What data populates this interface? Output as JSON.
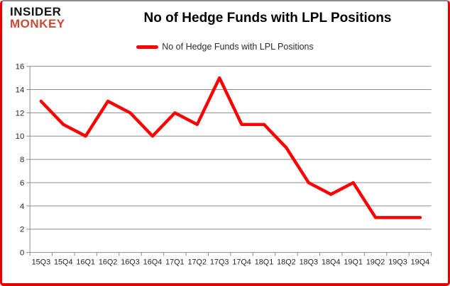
{
  "logo": {
    "line1": "INSIDER",
    "line2": "MONKEY"
  },
  "header": {
    "title": "No of Hedge Funds with LPL Positions"
  },
  "legend": {
    "label": "No of Hedge Funds with LPL Positions"
  },
  "colors": {
    "line": "#ff0000",
    "frame_border": "#e60000",
    "grid": "#8c8c8c",
    "axis_text": "#262626",
    "logo_primary": "#141414",
    "logo_accent": "#cb4a36"
  },
  "chart_data": {
    "type": "line",
    "title": "No of Hedge Funds with LPL Positions",
    "categories": [
      "15Q3",
      "15Q4",
      "16Q1",
      "16Q2",
      "16Q3",
      "16Q4",
      "17Q1",
      "17Q2",
      "17Q3",
      "17Q4",
      "18Q1",
      "18Q2",
      "18Q3",
      "18Q4",
      "19Q1",
      "19Q2",
      "19Q3",
      "19Q4"
    ],
    "series": [
      {
        "name": "No of Hedge Funds with LPL Positions",
        "color": "#ff0000",
        "values": [
          13,
          11,
          10,
          13,
          12,
          10,
          12,
          11,
          15,
          11,
          11,
          9,
          6,
          5,
          6,
          3,
          3,
          3
        ]
      }
    ],
    "xlabel": "",
    "ylabel": "",
    "ylim": [
      0,
      16
    ],
    "ytick_step": 2,
    "grid": true,
    "legend_position": "top-center"
  }
}
